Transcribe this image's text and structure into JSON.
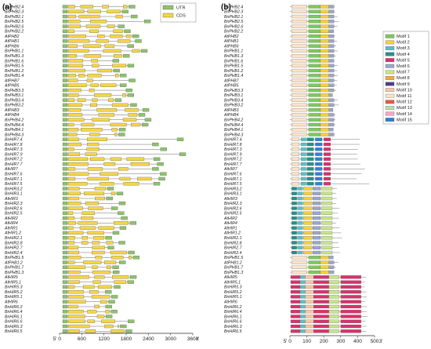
{
  "panel_a": {
    "label": "(a)",
    "legend": [
      {
        "name": "UTR",
        "color": "#8dc36b"
      },
      {
        "name": "CDS",
        "color": "#f5d547"
      }
    ],
    "axis_start": "5'",
    "axis_end": "3'",
    "ticks": [
      "0",
      "600",
      "1200",
      "1800",
      "2400",
      "3000",
      "3600"
    ],
    "scale_max": 3600
  },
  "panel_b": {
    "label": "(b)",
    "axis_start": "5'",
    "axis_end": "3'",
    "ticks": [
      "0",
      "100",
      "200",
      "300",
      "400",
      "500"
    ],
    "scale_max": 500,
    "motifs": [
      {
        "name": "Motif 1",
        "color": "#7dc95e"
      },
      {
        "name": "Motif 2",
        "color": "#f4d03f"
      },
      {
        "name": "Motif 3",
        "color": "#5bc0c8"
      },
      {
        "name": "Motif 4",
        "color": "#27908a"
      },
      {
        "name": "Motif 5",
        "color": "#d6336c"
      },
      {
        "name": "Motif 6",
        "color": "#9aa7c9"
      },
      {
        "name": "Motif 7",
        "color": "#c6e48b"
      },
      {
        "name": "Motif 8",
        "color": "#f5a742"
      },
      {
        "name": "Motif 9",
        "color": "#4a3f8c"
      },
      {
        "name": "Motif 10",
        "color": "#f7c6a3"
      },
      {
        "name": "Motif 11",
        "color": "#fbe3c8"
      },
      {
        "name": "Motif 12",
        "color": "#e85a3c"
      },
      {
        "name": "Motif 13",
        "color": "#b7e0b0"
      },
      {
        "name": "Motif 14",
        "color": "#f2a6c8"
      },
      {
        "name": "Motif 15",
        "color": "#2f7fd6"
      }
    ]
  },
  "genes": [
    "BnPHB2.4",
    "BnPHB2.3",
    "BnPHB2.1",
    "BnPHB2.5",
    "BnPHB2.6",
    "BnPHB2.2",
    "AtPHB2",
    "AtPHB1",
    "AtPHB6",
    "BnPHB1.1",
    "BnPHB1.3",
    "BnPHB1.6",
    "BnPHB1.5",
    "BnPHB1.2",
    "BnPHB1.4",
    "AtPHB7",
    "AtPHB5",
    "BnPHB3.3",
    "BnPHB3.1",
    "BnPHB3.4",
    "BnPHB3.2",
    "AtPHB3",
    "AtPHB4",
    "BnPHB4.2",
    "BnPHB4.4",
    "BnPHB4.1",
    "BnPHB4.3",
    "BnHIR7.4",
    "BnHIR7.8",
    "BnHIR7.3",
    "BnHIR7.9",
    "BnHIR7.2",
    "BnHIR7.7",
    "AtHIR7",
    "BnHIR7.6",
    "BnHIR7.1",
    "BnHIR7.5",
    "BnHIR3.2",
    "BnHIR3.1",
    "AtHIR3",
    "BnHIR2.3",
    "BnHIR2.6",
    "BnHIR2.5",
    "AtHIR2",
    "AtHIR4",
    "AtHIR1",
    "AtHIR1.2",
    "BnHIR2.1",
    "BnHIR2.8",
    "BnHIR2.7",
    "BnHIR2.4",
    "BnPHB1.5",
    "AtPHB1.2",
    "BnPHB1.7",
    "BnPHB1.3",
    "AtHIR5",
    "AtHIR5.1",
    "BnHIR5.3",
    "BnHIR5.2",
    "BnHIR5.1",
    "AtHIR6",
    "BnHIR6.2",
    "BnHIR6.4",
    "BnHIR6.1",
    "BnHIR6.6",
    "BnHIR6.3",
    "BnHIR6.5"
  ]
}
